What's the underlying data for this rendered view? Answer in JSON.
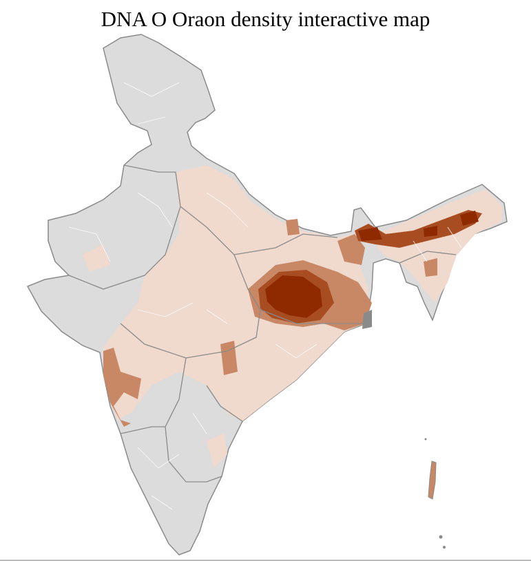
{
  "title": "DNA O Oraon density interactive map",
  "colors": {
    "no_data": "#dcdcdc",
    "low": "#f0d9cd",
    "medium_low": "#e2b9a3",
    "medium": "#c88866",
    "high": "#a84d22",
    "very_high": "#8f2a00",
    "district_border": "#ffffff",
    "state_border": "#8a8a8a"
  }
}
